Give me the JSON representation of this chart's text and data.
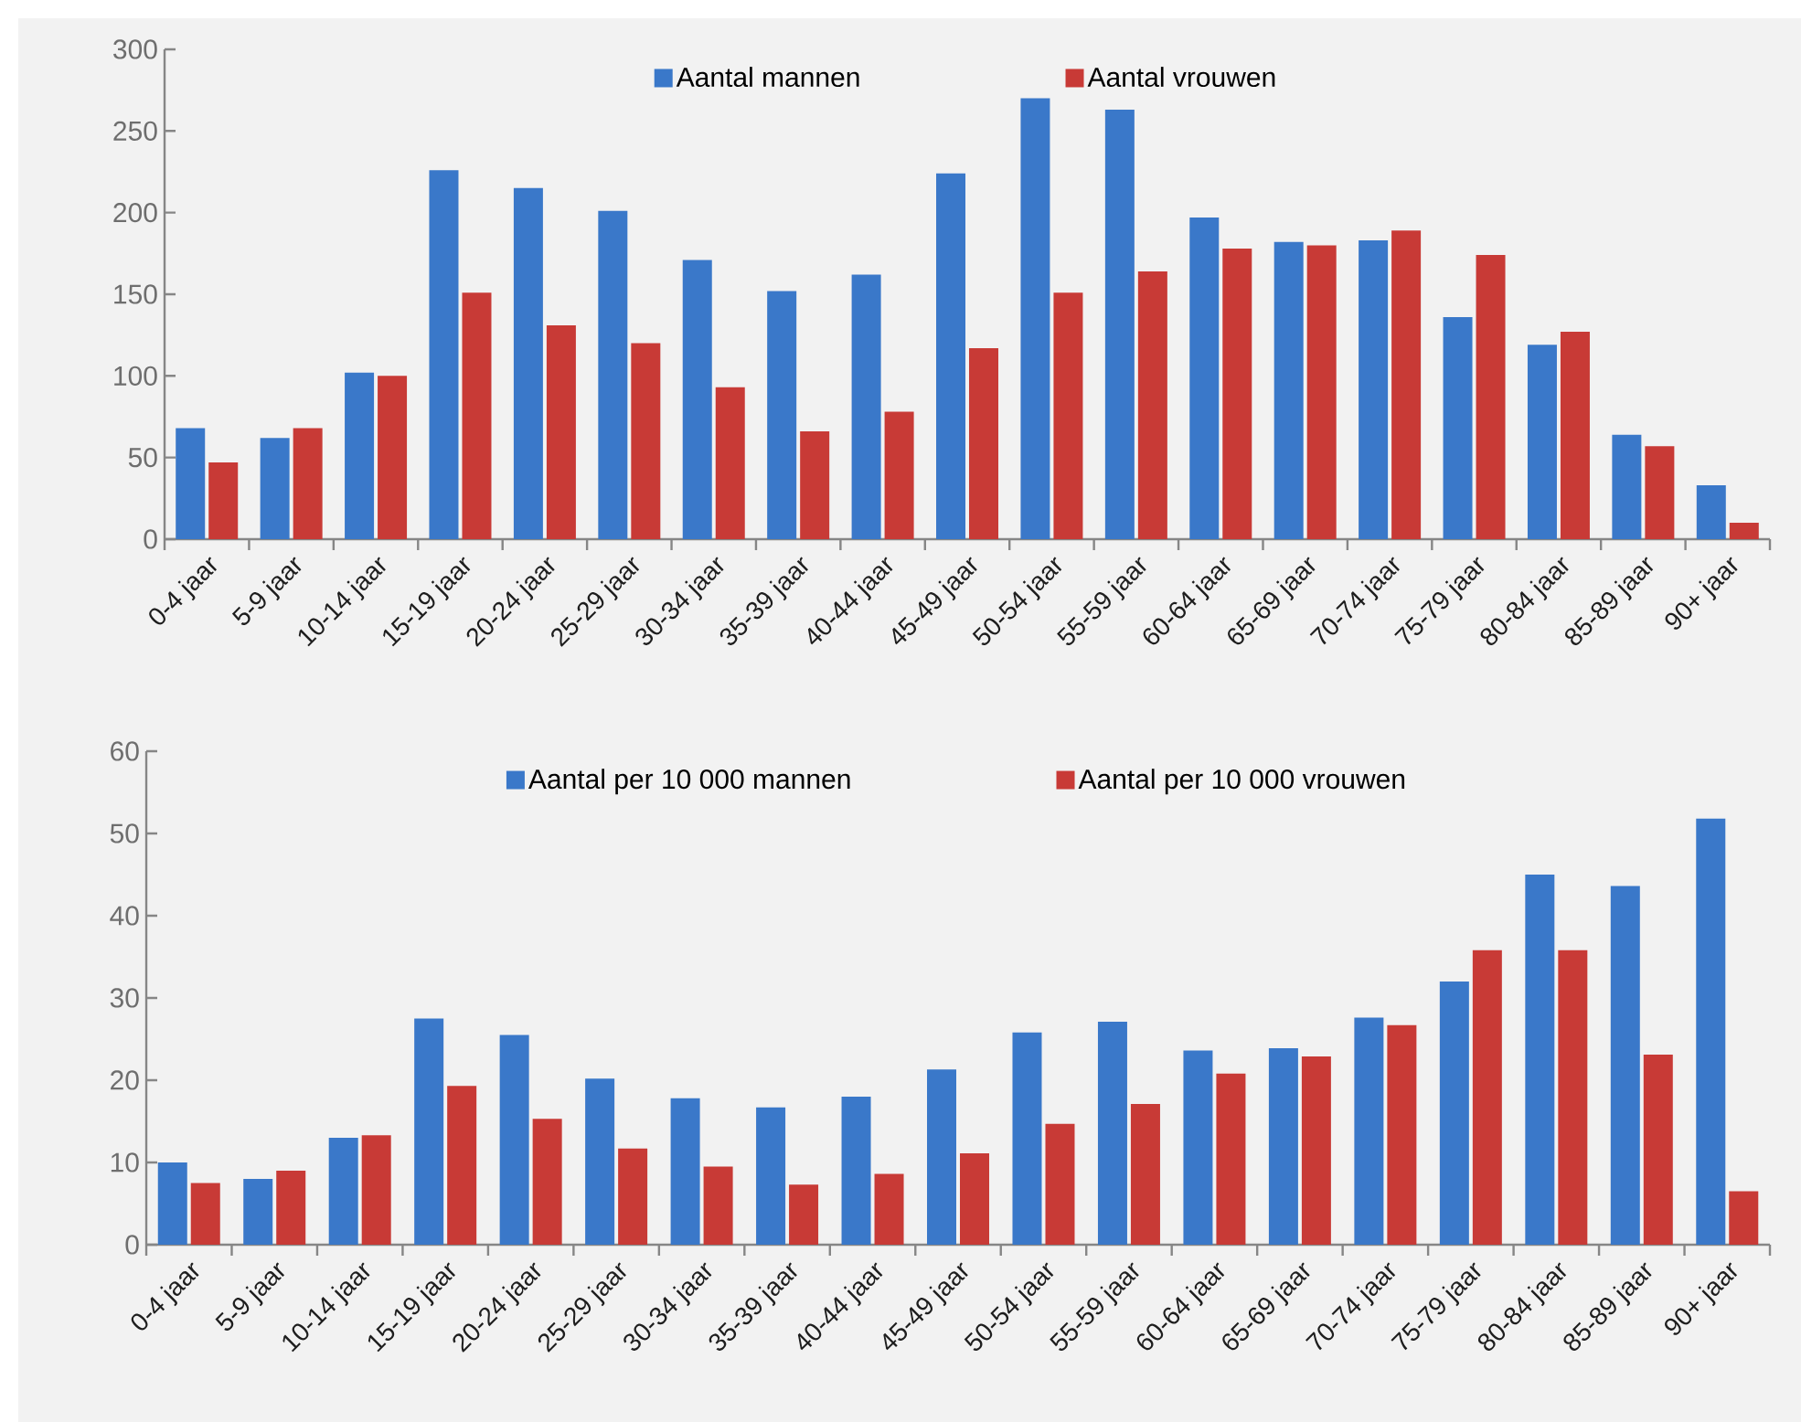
{
  "chart_data": [
    {
      "type": "bar",
      "categories": [
        "0-4 jaar",
        "5-9 jaar",
        "10-14 jaar",
        "15-19 jaar",
        "20-24 jaar",
        "25-29 jaar",
        "30-34 jaar",
        "35-39 jaar",
        "40-44 jaar",
        "45-49 jaar",
        "50-54 jaar",
        "55-59 jaar",
        "60-64 jaar",
        "65-69 jaar",
        "70-74 jaar",
        "75-79 jaar",
        "80-84 jaar",
        "85-89 jaar",
        "90+ jaar"
      ],
      "series": [
        {
          "name": "Aantal mannen",
          "color": "#3a78c9",
          "values": [
            68,
            62,
            102,
            226,
            215,
            201,
            171,
            152,
            162,
            224,
            270,
            263,
            197,
            182,
            183,
            136,
            119,
            64,
            33
          ]
        },
        {
          "name": "Aantal vrouwen",
          "color": "#c83a36",
          "values": [
            47,
            68,
            100,
            151,
            131,
            120,
            93,
            66,
            78,
            117,
            151,
            164,
            178,
            180,
            189,
            174,
            127,
            57,
            10
          ]
        }
      ],
      "ylim": [
        0,
        300
      ],
      "yticks": [
        0,
        50,
        100,
        150,
        200,
        250,
        300
      ],
      "legend": "top"
    },
    {
      "type": "bar",
      "categories": [
        "0-4 jaar",
        "5-9 jaar",
        "10-14 jaar",
        "15-19 jaar",
        "20-24 jaar",
        "25-29 jaar",
        "30-34 jaar",
        "35-39 jaar",
        "40-44 jaar",
        "45-49 jaar",
        "50-54 jaar",
        "55-59 jaar",
        "60-64 jaar",
        "65-69 jaar",
        "70-74 jaar",
        "75-79 jaar",
        "80-84 jaar",
        "85-89 jaar",
        "90+ jaar"
      ],
      "series": [
        {
          "name": "Aantal per 10 000 mannen",
          "color": "#3a78c9",
          "values": [
            10,
            8,
            13,
            27.5,
            25.5,
            20.2,
            17.8,
            16.7,
            18,
            21.3,
            25.8,
            27.1,
            23.6,
            23.9,
            27.6,
            32,
            45,
            43.6,
            51.8
          ]
        },
        {
          "name": "Aantal per 10 000 vrouwen",
          "color": "#c83a36",
          "values": [
            7.5,
            9,
            13.3,
            19.3,
            15.3,
            11.7,
            9.5,
            7.3,
            8.6,
            11.1,
            14.7,
            17.1,
            20.8,
            22.9,
            26.7,
            35.8,
            35.8,
            23.1,
            6.5
          ]
        }
      ],
      "ylim": [
        0,
        60
      ],
      "yticks": [
        0,
        10,
        20,
        30,
        40,
        50,
        60
      ],
      "legend": "top"
    }
  ]
}
